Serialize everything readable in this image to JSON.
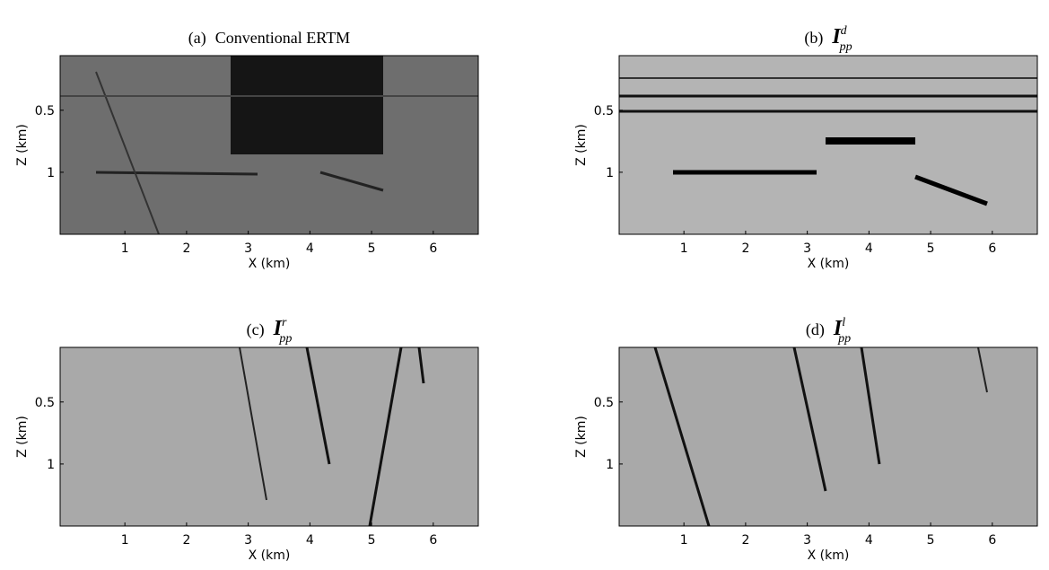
{
  "chart_data": [
    {
      "type": "image",
      "label": "(a)",
      "title": "Conventional ERTM",
      "xlabel": "X (km)",
      "ylabel": "Z (km)",
      "xlim": [
        -0.05,
        6.73
      ],
      "ylim": [
        0.06,
        1.5
      ],
      "xticks": [
        1,
        2,
        3,
        4,
        5,
        6
      ],
      "yticks": [
        0.5,
        1
      ]
    },
    {
      "type": "image",
      "label": "(b)",
      "symbol": "I",
      "superscript": "d",
      "subscript": "pp",
      "xlabel": "X (km)",
      "ylabel": "Z (km)",
      "xlim": [
        -0.05,
        6.73
      ],
      "ylim": [
        0.06,
        1.5
      ],
      "xticks": [
        1,
        2,
        3,
        4,
        5,
        6
      ],
      "yticks": [
        0.5,
        1
      ]
    },
    {
      "type": "image",
      "label": "(c)",
      "symbol": "I",
      "superscript": "r",
      "subscript": "pp",
      "xlabel": "X (km)",
      "ylabel": "Z (km)",
      "xlim": [
        -0.05,
        6.73
      ],
      "ylim": [
        0.06,
        1.5
      ],
      "xticks": [
        1,
        2,
        3,
        4,
        5,
        6
      ],
      "yticks": [
        0.5,
        1
      ]
    },
    {
      "type": "image",
      "label": "(d)",
      "symbol": "I",
      "superscript": "l",
      "subscript": "pp",
      "xlabel": "X (km)",
      "ylabel": "Z (km)",
      "xlim": [
        -0.05,
        6.73
      ],
      "ylim": [
        0.06,
        1.5
      ],
      "xticks": [
        1,
        2,
        3,
        4,
        5,
        6
      ],
      "yticks": [
        0.5,
        1
      ]
    }
  ]
}
